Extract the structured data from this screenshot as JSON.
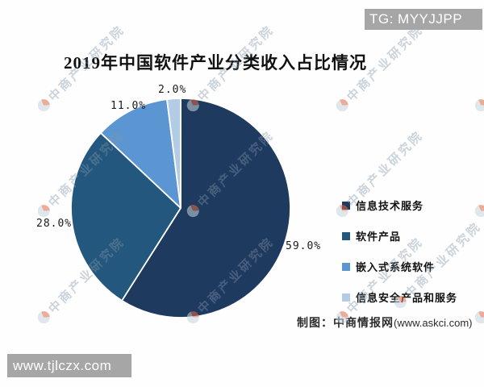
{
  "badges": {
    "top_right": "TG: MYYJJPP",
    "bottom_left": "www.tjlczx.com"
  },
  "watermark": {
    "text": "中商产业研究院"
  },
  "credit": {
    "prefix": "制图：中商情报网",
    "site": "(www.askci.com)"
  },
  "chart_data": {
    "type": "pie",
    "title": "2019年中国软件产业分类收入占比情况",
    "categories": [
      "信息技术服务",
      "软件产品",
      "嵌入式系统软件",
      "信息安全产品和服务"
    ],
    "values": [
      59.0,
      28.0,
      11.0,
      2.0
    ],
    "labels": [
      "59.0%",
      "28.0%",
      "11.0%",
      "2.0%"
    ],
    "unit": "%",
    "colors": [
      "#1f3a5f",
      "#24577d",
      "#5b96d2",
      "#b3cce6"
    ],
    "start_angle_deg": 0,
    "direction": "clockwise",
    "legend_position": "right",
    "slice_border_color": "#ffffff"
  }
}
